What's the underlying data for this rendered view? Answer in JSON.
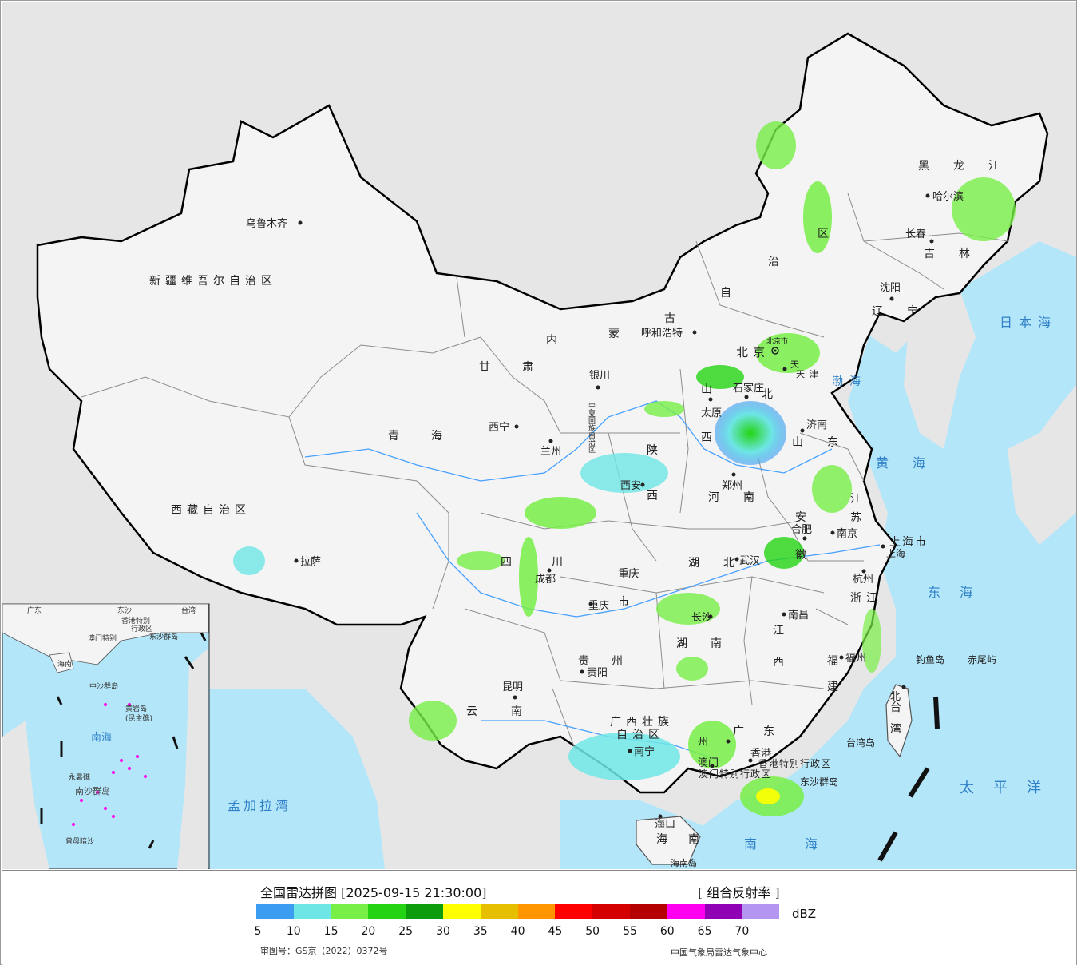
{
  "legend": {
    "title": "全国雷达拼图 [2025-09-15 21:30:00]",
    "product": "[ 组合反射率 ]",
    "unit": "dBZ",
    "review_number": "审图号：GS京（2022）0372号",
    "credit": "中国气象局雷达气象中心",
    "ticks": [
      "5",
      "10",
      "15",
      "20",
      "25",
      "30",
      "35",
      "40",
      "45",
      "50",
      "55",
      "60",
      "65",
      "70"
    ],
    "colors": [
      "#3c9cf0",
      "#6ee6e6",
      "#78ef46",
      "#24d412",
      "#0c9c0c",
      "#ffff00",
      "#e6c000",
      "#ff9600",
      "#ff0000",
      "#d40000",
      "#b40000",
      "#ff00f0",
      "#9000b4",
      "#b496f0"
    ]
  },
  "map_colors": {
    "sea": "#b4e6fa",
    "foreign_land": "#e6e6e6",
    "china_land": "#f4f4f4",
    "border": "#000000",
    "province_border": "#8c8c8c",
    "river": "#46a0ff"
  },
  "provinces": [
    "新疆维吾尔自治区",
    "西藏自治区",
    "青海",
    "甘肃",
    "内蒙古自治区",
    "黑龙江",
    "吉林",
    "辽宁",
    "宁夏回族自治区",
    "陕西",
    "山西",
    "河北",
    "山东",
    "河南",
    "四川",
    "重庆市",
    "湖北",
    "安徽",
    "江苏",
    "上海市",
    "浙江",
    "湖南",
    "江西",
    "福建",
    "贵州",
    "云南",
    "广西壮族自治区",
    "广东",
    "海南",
    "台湾",
    "天津",
    "北京",
    "香港特别行政区",
    "澳门特别行政区"
  ],
  "cities": [
    "乌鲁木齐",
    "拉萨",
    "西宁",
    "兰州",
    "银川",
    "呼和浩特",
    "北京",
    "天津",
    "石家庄",
    "太原",
    "济南",
    "郑州",
    "西安",
    "成都",
    "重庆",
    "武汉",
    "合肥",
    "南京",
    "上海",
    "杭州",
    "长沙",
    "南昌",
    "福州",
    "贵阳",
    "昆明",
    "南宁",
    "广州",
    "香港",
    "澳门",
    "海口",
    "台北",
    "沈阳",
    "长春",
    "哈尔滨"
  ],
  "seas": [
    "日本海",
    "渤海",
    "黄海",
    "东海",
    "太平洋",
    "南海",
    "孟加拉湾"
  ],
  "islands": [
    "钓鱼岛",
    "赤尾屿",
    "台湾岛",
    "东沙群岛",
    "海南岛"
  ],
  "inset": {
    "labels": [
      "广东",
      "东沙",
      "台湾",
      "香港特别",
      "行政区",
      "澳门特别",
      "东沙群岛",
      "海南",
      "中沙群岛",
      "黄岩岛",
      "(民主礁)",
      "南海",
      "永暑礁",
      "南沙群岛",
      "曾母暗沙"
    ]
  }
}
